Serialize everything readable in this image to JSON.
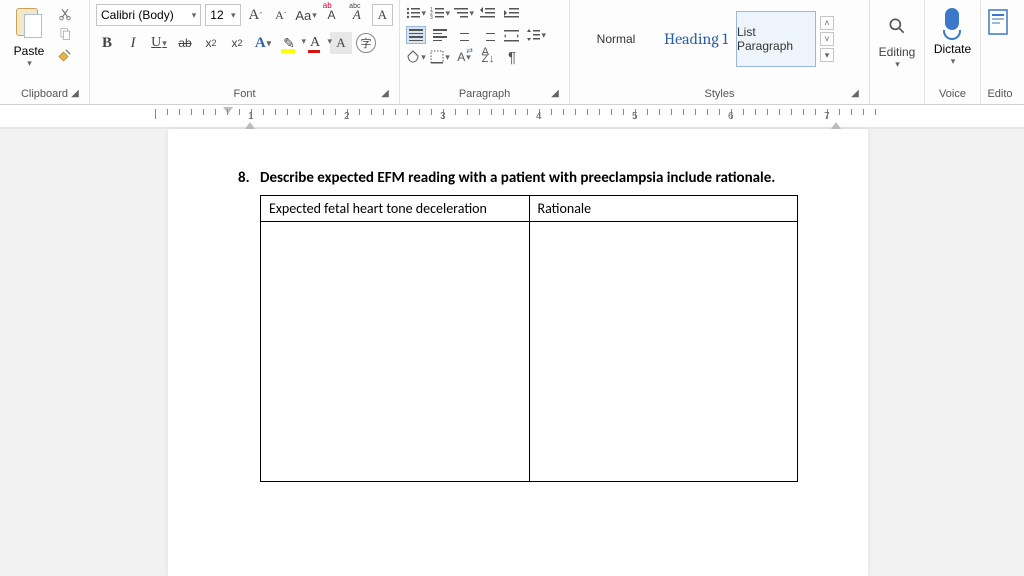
{
  "ribbon": {
    "clipboard": {
      "label": "Clipboard",
      "paste": "Paste"
    },
    "font": {
      "label": "Font",
      "name": "Calibri (Body)",
      "size": "12",
      "buttons": {
        "grow": "Aˆ",
        "shrink": "Aˇ",
        "case": "Aa",
        "clear": "A",
        "bold": "B",
        "italic": "I",
        "underline": "U",
        "strike": "ab",
        "sub": "x₂",
        "sup": "x²",
        "texteffects": "A",
        "highlight": "✎",
        "fontcolor": "A",
        "shading": "A",
        "enclose": "字"
      }
    },
    "paragraph": {
      "label": "Paragraph"
    },
    "styles": {
      "label": "Styles",
      "items": [
        "Normal",
        "Heading 1",
        "List Paragraph"
      ]
    },
    "editing": {
      "label": "Editing"
    },
    "voice": {
      "label": "Voice",
      "dictate": "Dictate"
    },
    "editor": {
      "label": "Edito"
    }
  },
  "ruler": {
    "marks": [
      "1",
      "2",
      "3",
      "4",
      "5",
      "6",
      "7"
    ]
  },
  "document": {
    "q_number": "8.",
    "q_text": "Describe expected EFM reading with a patient with preeclampsia include rationale.",
    "col1": "Expected fetal heart tone deceleration",
    "col2": "Rationale"
  },
  "leftedge": "o"
}
